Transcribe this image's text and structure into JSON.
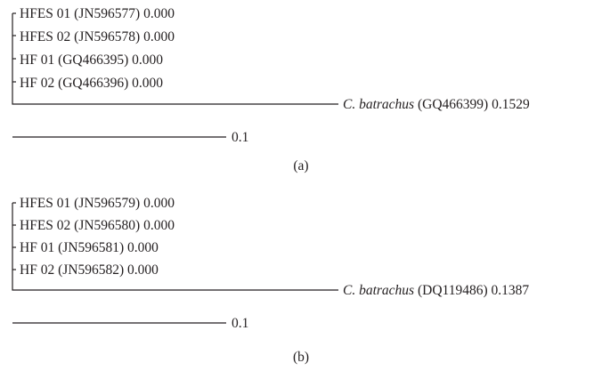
{
  "panels": [
    {
      "caption": "(a)",
      "leaves": [
        {
          "name": "HFES 01",
          "accession": "(JN596577)",
          "distance": "0.000"
        },
        {
          "name": "HFES 02",
          "accession": "(JN596578)",
          "distance": "0.000"
        },
        {
          "name": "HF 01",
          "accession": "(GQ466395)",
          "distance": "0.000"
        },
        {
          "name": "HF 02",
          "accession": "(GQ466396)",
          "distance": "0.000"
        }
      ],
      "outgroup": {
        "species": "C. batrachus",
        "accession": "(GQ466399)",
        "distance": "0.1529"
      },
      "scale_bar_label": "0.1"
    },
    {
      "caption": "(b)",
      "leaves": [
        {
          "name": "HFES 01",
          "accession": "(JN596579)",
          "distance": "0.000"
        },
        {
          "name": "HFES 02",
          "accession": "(JN596580)",
          "distance": "0.000"
        },
        {
          "name": "HF 01",
          "accession": "(JN596581)",
          "distance": "0.000"
        },
        {
          "name": "HF 02",
          "accession": "(JN596582)",
          "distance": "0.000"
        }
      ],
      "outgroup": {
        "species": "C. batrachus",
        "accession": "(DQ119486)",
        "distance": "0.1387"
      },
      "scale_bar_label": "0.1"
    }
  ]
}
